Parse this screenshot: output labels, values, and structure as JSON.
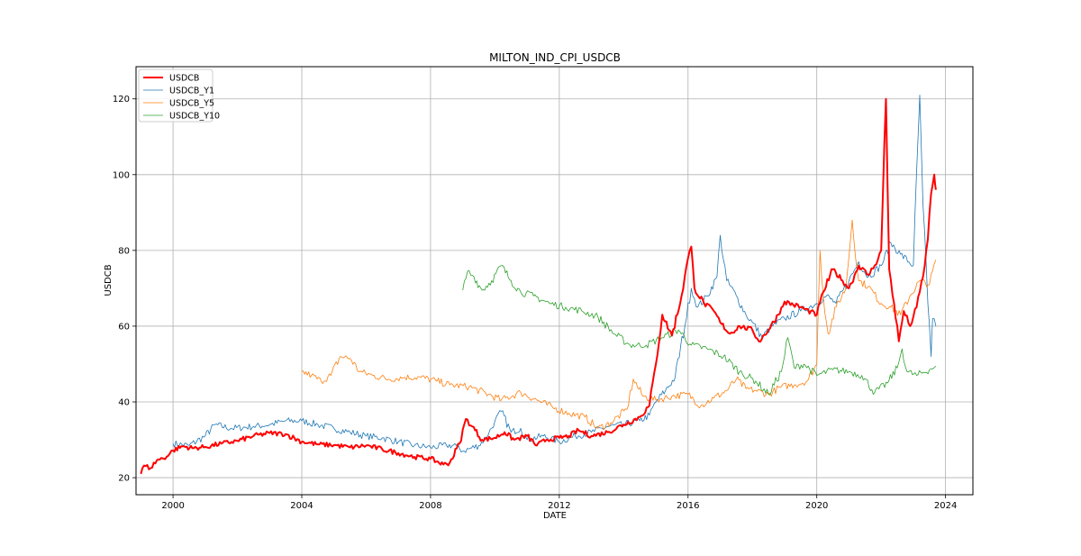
{
  "chart_data": {
    "type": "line",
    "title": "MILTON_IND_CPI_USDCB",
    "xlabel": "DATE",
    "ylabel": "USDCB",
    "xlim": [
      1998.85,
      2024.85
    ],
    "ylim": [
      15.5,
      128.5
    ],
    "x_ticks": [
      2000,
      2004,
      2008,
      2012,
      2016,
      2020,
      2024
    ],
    "y_ticks": [
      20,
      40,
      60,
      80,
      100,
      120
    ],
    "grid": true,
    "legend_position": "upper-left",
    "series": [
      {
        "name": "USDCB",
        "color": "#ff0000",
        "width": 2,
        "points": [
          [
            1999.0,
            21.0
          ],
          [
            1999.1,
            23.2
          ],
          [
            1999.3,
            22.5
          ],
          [
            1999.5,
            24.6
          ],
          [
            1999.8,
            25.5
          ],
          [
            2000.0,
            27.2
          ],
          [
            2000.3,
            28.3
          ],
          [
            2000.6,
            27.8
          ],
          [
            2001.0,
            28.1
          ],
          [
            2001.5,
            29.0
          ],
          [
            2002.0,
            29.7
          ],
          [
            2002.5,
            31.0
          ],
          [
            2003.0,
            31.8
          ],
          [
            2003.5,
            31.5
          ],
          [
            2004.0,
            29.5
          ],
          [
            2004.5,
            28.8
          ],
          [
            2005.0,
            28.6
          ],
          [
            2005.5,
            28.0
          ],
          [
            2006.0,
            28.5
          ],
          [
            2006.5,
            27.5
          ],
          [
            2007.0,
            26.5
          ],
          [
            2007.5,
            25.5
          ],
          [
            2008.0,
            25.0
          ],
          [
            2008.4,
            23.5
          ],
          [
            2008.6,
            24.0
          ],
          [
            2008.9,
            29.0
          ],
          [
            2009.1,
            35.5
          ],
          [
            2009.3,
            33.5
          ],
          [
            2009.6,
            30.0
          ],
          [
            2010.0,
            30.5
          ],
          [
            2010.3,
            32.0
          ],
          [
            2010.6,
            30.0
          ],
          [
            2011.0,
            31.0
          ],
          [
            2011.3,
            28.5
          ],
          [
            2011.6,
            30.0
          ],
          [
            2012.0,
            30.5
          ],
          [
            2012.3,
            31.0
          ],
          [
            2012.6,
            32.5
          ],
          [
            2013.0,
            31.0
          ],
          [
            2013.5,
            32.0
          ],
          [
            2014.0,
            34.0
          ],
          [
            2014.5,
            36.0
          ],
          [
            2014.8,
            39.0
          ],
          [
            2015.0,
            50.0
          ],
          [
            2015.2,
            63.0
          ],
          [
            2015.5,
            57.5
          ],
          [
            2015.8,
            68.0
          ],
          [
            2016.0,
            78.0
          ],
          [
            2016.1,
            81.0
          ],
          [
            2016.2,
            70.0
          ],
          [
            2016.5,
            66.0
          ],
          [
            2016.8,
            64.0
          ],
          [
            2017.0,
            61.0
          ],
          [
            2017.3,
            58.0
          ],
          [
            2017.6,
            60.0
          ],
          [
            2018.0,
            59.0
          ],
          [
            2018.2,
            56.0
          ],
          [
            2018.5,
            59.0
          ],
          [
            2018.8,
            63.0
          ],
          [
            2019.0,
            66.5
          ],
          [
            2019.5,
            65.0
          ],
          [
            2020.0,
            63.0
          ],
          [
            2020.2,
            69.0
          ],
          [
            2020.5,
            75.0
          ],
          [
            2020.8,
            72.0
          ],
          [
            2021.0,
            70.0
          ],
          [
            2021.3,
            76.0
          ],
          [
            2021.6,
            73.5
          ],
          [
            2021.8,
            76.0
          ],
          [
            2022.0,
            80.0
          ],
          [
            2022.15,
            120.0
          ],
          [
            2022.25,
            75.0
          ],
          [
            2022.4,
            66.0
          ],
          [
            2022.55,
            56.0
          ],
          [
            2022.7,
            64.0
          ],
          [
            2022.9,
            60.0
          ],
          [
            2023.1,
            65.0
          ],
          [
            2023.3,
            73.0
          ],
          [
            2023.45,
            83.0
          ],
          [
            2023.55,
            95.0
          ],
          [
            2023.65,
            100.0
          ],
          [
            2023.7,
            96.0
          ]
        ]
      },
      {
        "name": "USDCB_Y1",
        "color": "#1f77b4",
        "width": 0.8,
        "points": [
          [
            2000.0,
            29.0
          ],
          [
            2000.5,
            28.5
          ],
          [
            2001.0,
            31.0
          ],
          [
            2001.3,
            34.0
          ],
          [
            2001.8,
            33.0
          ],
          [
            2002.5,
            33.5
          ],
          [
            2003.0,
            34.0
          ],
          [
            2003.5,
            35.0
          ],
          [
            2004.0,
            35.0
          ],
          [
            2004.5,
            34.0
          ],
          [
            2005.0,
            33.0
          ],
          [
            2005.5,
            32.0
          ],
          [
            2006.0,
            31.0
          ],
          [
            2006.5,
            30.5
          ],
          [
            2007.0,
            29.5
          ],
          [
            2007.5,
            28.5
          ],
          [
            2008.0,
            28.0
          ],
          [
            2008.5,
            28.5
          ],
          [
            2008.8,
            28.5
          ],
          [
            2009.0,
            27.0
          ],
          [
            2009.5,
            28.5
          ],
          [
            2009.8,
            31.5
          ],
          [
            2010.0,
            35.0
          ],
          [
            2010.2,
            37.5
          ],
          [
            2010.5,
            32.0
          ],
          [
            2010.8,
            33.0
          ],
          [
            2011.0,
            30.0
          ],
          [
            2011.5,
            31.0
          ],
          [
            2012.0,
            29.5
          ],
          [
            2012.5,
            31.0
          ],
          [
            2013.0,
            32.0
          ],
          [
            2013.5,
            33.5
          ],
          [
            2014.0,
            34.0
          ],
          [
            2014.5,
            35.0
          ],
          [
            2014.8,
            36.5
          ],
          [
            2015.0,
            40.0
          ],
          [
            2015.3,
            43.0
          ],
          [
            2015.6,
            46.5
          ],
          [
            2015.9,
            60.0
          ],
          [
            2016.1,
            70.0
          ],
          [
            2016.3,
            65.0
          ],
          [
            2016.6,
            68.0
          ],
          [
            2016.9,
            73.0
          ],
          [
            2017.0,
            84.0
          ],
          [
            2017.2,
            72.0
          ],
          [
            2017.5,
            68.0
          ],
          [
            2017.8,
            63.0
          ],
          [
            2018.0,
            61.0
          ],
          [
            2018.3,
            57.0
          ],
          [
            2018.6,
            60.0
          ],
          [
            2019.0,
            62.0
          ],
          [
            2019.5,
            64.0
          ],
          [
            2020.0,
            66.0
          ],
          [
            2020.3,
            68.0
          ],
          [
            2020.6,
            66.0
          ],
          [
            2021.0,
            72.0
          ],
          [
            2021.3,
            77.0
          ],
          [
            2021.6,
            73.0
          ],
          [
            2022.0,
            76.0
          ],
          [
            2022.3,
            82.0
          ],
          [
            2022.6,
            79.0
          ],
          [
            2023.0,
            76.0
          ],
          [
            2023.2,
            121.0
          ],
          [
            2023.3,
            92.0
          ],
          [
            2023.45,
            66.0
          ],
          [
            2023.55,
            52.0
          ],
          [
            2023.6,
            62.0
          ],
          [
            2023.7,
            60.0
          ]
        ]
      },
      {
        "name": "USDCB_Y5",
        "color": "#ff7f0e",
        "width": 0.8,
        "points": [
          [
            2004.0,
            48.0
          ],
          [
            2004.3,
            47.0
          ],
          [
            2004.6,
            45.5
          ],
          [
            2004.9,
            47.0
          ],
          [
            2005.2,
            52.0
          ],
          [
            2005.5,
            51.5
          ],
          [
            2005.8,
            48.0
          ],
          [
            2006.2,
            47.0
          ],
          [
            2006.7,
            46.0
          ],
          [
            2007.2,
            46.5
          ],
          [
            2007.7,
            46.5
          ],
          [
            2008.2,
            45.5
          ],
          [
            2008.6,
            44.5
          ],
          [
            2009.2,
            44.0
          ],
          [
            2009.8,
            42.0
          ],
          [
            2010.2,
            40.5
          ],
          [
            2010.8,
            42.5
          ],
          [
            2011.3,
            40.5
          ],
          [
            2011.8,
            38.5
          ],
          [
            2012.3,
            37.0
          ],
          [
            2012.8,
            36.0
          ],
          [
            2013.2,
            33.0
          ],
          [
            2013.6,
            34.5
          ],
          [
            2014.1,
            38.0
          ],
          [
            2014.3,
            46.0
          ],
          [
            2014.6,
            41.5
          ],
          [
            2015.0,
            40.5
          ],
          [
            2015.5,
            41.5
          ],
          [
            2016.0,
            42.0
          ],
          [
            2016.4,
            39.0
          ],
          [
            2016.8,
            41.0
          ],
          [
            2017.2,
            43.0
          ],
          [
            2017.5,
            46.0
          ],
          [
            2017.8,
            43.5
          ],
          [
            2018.1,
            43.0
          ],
          [
            2018.5,
            42.0
          ],
          [
            2018.9,
            44.0
          ],
          [
            2019.3,
            44.5
          ],
          [
            2019.7,
            45.5
          ],
          [
            2020.0,
            50.0
          ],
          [
            2020.1,
            80.0
          ],
          [
            2020.2,
            68.0
          ],
          [
            2020.35,
            58.0
          ],
          [
            2020.6,
            65.0
          ],
          [
            2020.9,
            70.0
          ],
          [
            2021.1,
            88.0
          ],
          [
            2021.3,
            72.0
          ],
          [
            2021.6,
            70.5
          ],
          [
            2022.0,
            66.0
          ],
          [
            2022.3,
            65.0
          ],
          [
            2022.6,
            63.0
          ],
          [
            2022.9,
            68.0
          ],
          [
            2023.2,
            72.0
          ],
          [
            2023.5,
            71.0
          ],
          [
            2023.7,
            77.5
          ]
        ]
      },
      {
        "name": "USDCB_Y10",
        "color": "#2ca02c",
        "width": 0.8,
        "points": [
          [
            2009.0,
            69.5
          ],
          [
            2009.15,
            74.5
          ],
          [
            2009.35,
            73.0
          ],
          [
            2009.6,
            69.5
          ],
          [
            2009.9,
            72.0
          ],
          [
            2010.2,
            76.0
          ],
          [
            2010.5,
            72.0
          ],
          [
            2010.8,
            69.0
          ],
          [
            2011.2,
            68.0
          ],
          [
            2011.7,
            66.0
          ],
          [
            2012.2,
            65.0
          ],
          [
            2012.7,
            64.0
          ],
          [
            2013.2,
            62.5
          ],
          [
            2013.7,
            58.0
          ],
          [
            2014.2,
            55.0
          ],
          [
            2014.7,
            55.0
          ],
          [
            2015.2,
            57.0
          ],
          [
            2015.7,
            59.0
          ],
          [
            2016.1,
            55.0
          ],
          [
            2016.6,
            54.0
          ],
          [
            2017.1,
            52.0
          ],
          [
            2017.6,
            48.0
          ],
          [
            2018.1,
            45.5
          ],
          [
            2018.5,
            42.0
          ],
          [
            2018.9,
            48.0
          ],
          [
            2019.1,
            57.0
          ],
          [
            2019.3,
            49.0
          ],
          [
            2019.6,
            50.0
          ],
          [
            2020.0,
            47.0
          ],
          [
            2020.5,
            48.5
          ],
          [
            2021.0,
            48.0
          ],
          [
            2021.4,
            47.0
          ],
          [
            2021.8,
            42.5
          ],
          [
            2022.2,
            45.0
          ],
          [
            2022.5,
            49.0
          ],
          [
            2022.65,
            54.0
          ],
          [
            2022.8,
            48.0
          ],
          [
            2023.1,
            47.0
          ],
          [
            2023.5,
            48.5
          ],
          [
            2023.7,
            49.5
          ]
        ]
      }
    ]
  }
}
